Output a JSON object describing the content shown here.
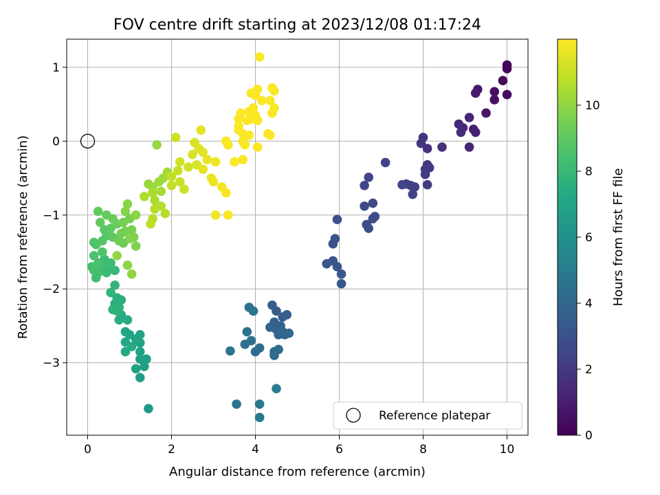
{
  "chart_data": {
    "type": "scatter",
    "title": "FOV centre drift starting at 2023/12/08 01:17:24",
    "xlabel": "Angular distance from reference (arcmin)",
    "ylabel": "Rotation from reference (arcmin)",
    "xlim": [
      -0.5,
      10.5
    ],
    "ylim": [
      -3.98,
      1.38
    ],
    "xticks": [
      0,
      2,
      4,
      6,
      8,
      10
    ],
    "xtick_labels": [
      "0",
      "2",
      "4",
      "6",
      "8",
      "10"
    ],
    "yticks": [
      1,
      0,
      -1,
      -2,
      -3
    ],
    "ytick_labels": [
      "1",
      "0",
      "−1",
      "−2",
      "−3"
    ],
    "grid": true,
    "legend": {
      "position": "bottom-right",
      "label": "Reference platepar"
    },
    "reference_point": {
      "x": 0,
      "y": 0
    },
    "colorbar": {
      "label": "Hours from first FF file",
      "min": 0,
      "max": 12,
      "ticks": [
        0,
        2,
        4,
        6,
        8,
        10
      ],
      "tick_labels": [
        "0",
        "2",
        "4",
        "6",
        "8",
        "10"
      ],
      "colormap": "viridis"
    },
    "series": [
      {
        "points": [
          [
            10.0,
            1.03,
            0.1
          ],
          [
            10.0,
            0.98,
            0.2
          ],
          [
            9.9,
            0.82,
            0.3
          ],
          [
            10.0,
            0.63,
            0.35
          ],
          [
            9.7,
            0.67,
            0.5
          ],
          [
            9.7,
            0.56,
            0.6
          ],
          [
            9.5,
            0.38,
            0.7
          ],
          [
            9.3,
            0.7,
            0.8
          ],
          [
            9.25,
            0.65,
            0.9
          ],
          [
            9.2,
            0.16,
            1.0
          ],
          [
            9.25,
            0.12,
            1.1
          ],
          [
            9.1,
            0.32,
            1.2
          ],
          [
            9.1,
            -0.08,
            1.25
          ],
          [
            8.85,
            0.23,
            1.3
          ],
          [
            8.95,
            0.18,
            1.4
          ],
          [
            8.9,
            0.12,
            1.5
          ],
          [
            8.45,
            -0.08,
            1.6
          ],
          [
            8.1,
            -0.1,
            1.7
          ],
          [
            8.0,
            0.05,
            1.8
          ],
          [
            7.95,
            -0.03,
            1.85
          ],
          [
            8.1,
            -0.32,
            1.9
          ],
          [
            8.05,
            -0.38,
            2.0
          ],
          [
            8.15,
            -0.36,
            2.05
          ],
          [
            8.05,
            -0.45,
            2.1
          ],
          [
            8.1,
            -0.59,
            2.15
          ],
          [
            7.8,
            -0.62,
            2.2
          ],
          [
            7.7,
            -0.6,
            2.25
          ],
          [
            7.6,
            -0.58,
            2.3
          ],
          [
            7.75,
            -0.72,
            2.35
          ],
          [
            7.5,
            -0.59,
            2.4
          ],
          [
            7.1,
            -0.29,
            2.45
          ],
          [
            6.7,
            -0.49,
            2.5
          ],
          [
            6.6,
            -0.6,
            2.55
          ],
          [
            6.6,
            -0.88,
            2.6
          ],
          [
            6.8,
            -0.84,
            2.65
          ],
          [
            6.85,
            -1.02,
            2.7
          ],
          [
            6.8,
            -1.05,
            2.75
          ],
          [
            6.65,
            -1.13,
            2.8
          ],
          [
            6.7,
            -1.18,
            2.85
          ],
          [
            5.95,
            -1.06,
            2.9
          ],
          [
            5.9,
            -1.32,
            3.0
          ],
          [
            5.85,
            -1.39,
            3.05
          ],
          [
            5.85,
            -1.62,
            3.1
          ],
          [
            5.7,
            -1.66,
            3.15
          ],
          [
            5.95,
            -1.7,
            3.2
          ],
          [
            6.05,
            -1.8,
            3.25
          ],
          [
            6.05,
            -1.93,
            3.3
          ],
          [
            4.4,
            -2.22,
            3.5
          ],
          [
            4.5,
            -2.3,
            3.55
          ],
          [
            4.65,
            -2.38,
            3.6
          ],
          [
            4.75,
            -2.35,
            3.65
          ],
          [
            4.45,
            -2.45,
            3.7
          ],
          [
            4.6,
            -2.5,
            3.75
          ],
          [
            4.5,
            -2.55,
            3.8
          ],
          [
            4.35,
            -2.52,
            3.85
          ],
          [
            4.55,
            -2.62,
            3.9
          ],
          [
            4.7,
            -2.62,
            3.95
          ],
          [
            4.65,
            -2.58,
            4.0
          ],
          [
            4.8,
            -2.6,
            4.05
          ],
          [
            4.45,
            -2.85,
            4.1
          ],
          [
            4.45,
            -2.9,
            4.15
          ],
          [
            4.55,
            -2.82,
            4.2
          ],
          [
            4.1,
            -2.8,
            4.25
          ],
          [
            4.0,
            -2.85,
            4.3
          ],
          [
            3.9,
            -2.7,
            4.35
          ],
          [
            3.75,
            -2.75,
            4.4
          ],
          [
            3.8,
            -2.58,
            4.45
          ],
          [
            3.85,
            -2.25,
            4.5
          ],
          [
            3.95,
            -2.3,
            4.55
          ],
          [
            3.4,
            -2.84,
            4.6
          ],
          [
            3.55,
            -3.56,
            4.7
          ],
          [
            4.1,
            -3.56,
            4.8
          ],
          [
            4.1,
            -3.74,
            4.9
          ],
          [
            4.5,
            -3.35,
            5.0
          ],
          [
            1.45,
            -3.62,
            6.5
          ],
          [
            1.25,
            -3.2,
            6.6
          ],
          [
            1.35,
            -3.05,
            6.7
          ],
          [
            1.4,
            -2.95,
            6.75
          ],
          [
            1.25,
            -2.95,
            6.8
          ],
          [
            1.15,
            -3.08,
            6.85
          ],
          [
            1.25,
            -2.85,
            6.9
          ],
          [
            1.25,
            -2.73,
            6.95
          ],
          [
            1.15,
            -2.68,
            7.0
          ],
          [
            1.25,
            -2.62,
            7.05
          ],
          [
            0.9,
            -2.58,
            7.1
          ],
          [
            1.0,
            -2.62,
            7.15
          ],
          [
            0.9,
            -2.72,
            7.2
          ],
          [
            0.9,
            -2.85,
            7.25
          ],
          [
            1.05,
            -2.78,
            7.3
          ],
          [
            0.95,
            -2.42,
            7.35
          ],
          [
            0.8,
            -2.35,
            7.4
          ],
          [
            0.75,
            -2.42,
            7.45
          ],
          [
            0.8,
            -2.15,
            7.5
          ],
          [
            0.7,
            -2.12,
            7.55
          ],
          [
            0.65,
            -2.2,
            7.6
          ],
          [
            0.75,
            -2.25,
            7.65
          ],
          [
            0.7,
            -2.3,
            7.7
          ],
          [
            0.6,
            -2.28,
            7.75
          ],
          [
            0.55,
            -2.05,
            7.8
          ],
          [
            0.65,
            -1.95,
            7.85
          ],
          [
            0.65,
            -1.75,
            8.0
          ],
          [
            0.5,
            -1.7,
            8.05
          ],
          [
            0.45,
            -1.78,
            8.1
          ],
          [
            0.55,
            -1.65,
            8.15
          ],
          [
            0.4,
            -1.6,
            8.2
          ],
          [
            0.3,
            -1.7,
            8.25
          ],
          [
            0.2,
            -1.85,
            8.3
          ],
          [
            0.25,
            -1.78,
            8.35
          ],
          [
            0.15,
            -1.75,
            8.4
          ],
          [
            0.1,
            -1.7,
            8.45
          ],
          [
            0.25,
            -1.65,
            8.5
          ],
          [
            0.15,
            -1.55,
            8.55
          ],
          [
            0.2,
            -1.4,
            8.6
          ],
          [
            0.15,
            -1.37,
            8.65
          ],
          [
            0.35,
            -1.5,
            8.7
          ],
          [
            0.35,
            -1.35,
            8.75
          ],
          [
            0.45,
            -1.28,
            8.8
          ],
          [
            0.4,
            -1.2,
            8.85
          ],
          [
            0.5,
            -1.25,
            8.9
          ],
          [
            0.6,
            -1.3,
            8.95
          ],
          [
            0.55,
            -1.18,
            9.0
          ],
          [
            0.3,
            -1.1,
            9.05
          ],
          [
            0.25,
            -0.95,
            9.1
          ],
          [
            0.45,
            -1.0,
            9.15
          ],
          [
            0.7,
            -1.12,
            9.2
          ],
          [
            0.6,
            -1.05,
            9.25
          ],
          [
            0.75,
            -1.35,
            9.3
          ],
          [
            0.85,
            -1.38,
            9.35
          ],
          [
            0.8,
            -1.25,
            9.4
          ],
          [
            0.9,
            -1.22,
            9.45
          ],
          [
            0.85,
            -1.1,
            9.5
          ],
          [
            1.0,
            -1.05,
            9.55
          ],
          [
            1.05,
            -1.2,
            9.6
          ],
          [
            1.1,
            -1.3,
            9.65
          ],
          [
            1.15,
            -1.42,
            9.7
          ],
          [
            1.0,
            -1.32,
            9.75
          ],
          [
            0.9,
            -0.95,
            9.8
          ],
          [
            0.95,
            -0.85,
            9.85
          ],
          [
            1.15,
            -1.0,
            9.9
          ],
          [
            0.95,
            -1.68,
            9.95
          ],
          [
            1.05,
            -1.8,
            10.0
          ],
          [
            0.7,
            -1.55,
            10.05
          ],
          [
            1.65,
            -0.05,
            10.1
          ],
          [
            1.45,
            -0.58,
            10.15
          ],
          [
            1.55,
            -0.62,
            10.2
          ],
          [
            1.7,
            -0.55,
            10.25
          ],
          [
            1.8,
            -0.5,
            10.3
          ],
          [
            1.9,
            -0.42,
            10.35
          ],
          [
            1.75,
            -0.68,
            10.4
          ],
          [
            1.6,
            -0.8,
            10.45
          ],
          [
            1.55,
            -0.7,
            10.5
          ],
          [
            1.35,
            -0.75,
            10.55
          ],
          [
            1.75,
            -0.88,
            10.6
          ],
          [
            1.6,
            -0.92,
            10.65
          ],
          [
            1.85,
            -0.98,
            10.7
          ],
          [
            1.55,
            -1.05,
            10.75
          ],
          [
            1.5,
            -1.12,
            10.8
          ],
          [
            2.0,
            -0.48,
            10.85
          ],
          [
            2.0,
            -0.6,
            10.9
          ],
          [
            2.15,
            -0.4,
            10.95
          ],
          [
            2.2,
            -0.55,
            11.0
          ],
          [
            2.3,
            -0.65,
            11.05
          ],
          [
            2.1,
            0.05,
            11.1
          ],
          [
            2.2,
            -0.28,
            11.15
          ],
          [
            2.4,
            -0.35,
            11.2
          ],
          [
            2.5,
            -0.18,
            11.25
          ],
          [
            2.6,
            -0.32,
            11.3
          ],
          [
            2.55,
            -0.02,
            11.35
          ],
          [
            2.65,
            -0.1,
            11.4
          ],
          [
            2.75,
            -0.15,
            11.45
          ],
          [
            2.7,
            0.15,
            11.5
          ],
          [
            2.75,
            -0.38,
            11.55
          ],
          [
            2.85,
            -0.25,
            11.6
          ],
          [
            2.95,
            -0.5,
            11.65
          ],
          [
            3.0,
            -0.55,
            11.7
          ],
          [
            3.05,
            -0.28,
            11.75
          ],
          [
            3.05,
            -1.0,
            11.8
          ],
          [
            3.2,
            -0.62,
            11.85
          ],
          [
            3.3,
            -0.7,
            11.9
          ],
          [
            3.35,
            -1.0,
            11.95
          ],
          [
            3.35,
            -0.05,
            11.95
          ],
          [
            3.3,
            0.0,
            11.95
          ],
          [
            3.5,
            -0.28,
            11.95
          ],
          [
            3.7,
            -0.25,
            11.95
          ],
          [
            3.6,
            0.15,
            11.95
          ],
          [
            3.6,
            0.2,
            11.95
          ],
          [
            3.7,
            0.1,
            11.95
          ],
          [
            3.6,
            0.3,
            11.95
          ],
          [
            3.65,
            0.38,
            11.95
          ],
          [
            3.8,
            0.28,
            11.95
          ],
          [
            3.85,
            0.4,
            11.95
          ],
          [
            3.9,
            0.3,
            11.95
          ],
          [
            3.95,
            0.45,
            11.95
          ],
          [
            4.0,
            0.35,
            11.95
          ],
          [
            4.05,
            0.28,
            11.95
          ],
          [
            3.75,
            -0.05,
            11.95
          ],
          [
            3.7,
            0.0,
            11.95
          ],
          [
            4.05,
            -0.08,
            11.95
          ],
          [
            3.85,
            0.08,
            11.95
          ],
          [
            4.15,
            0.55,
            11.95
          ],
          [
            3.9,
            0.65,
            11.95
          ],
          [
            4.05,
            0.7,
            11.95
          ],
          [
            4.0,
            0.62,
            11.95
          ],
          [
            4.4,
            0.72,
            11.95
          ],
          [
            4.45,
            0.68,
            11.95
          ],
          [
            4.35,
            0.55,
            11.95
          ],
          [
            4.45,
            0.45,
            11.95
          ],
          [
            4.4,
            0.38,
            11.95
          ],
          [
            4.3,
            0.1,
            11.95
          ],
          [
            4.35,
            0.08,
            11.95
          ],
          [
            4.1,
            1.14,
            11.95
          ]
        ]
      }
    ]
  }
}
